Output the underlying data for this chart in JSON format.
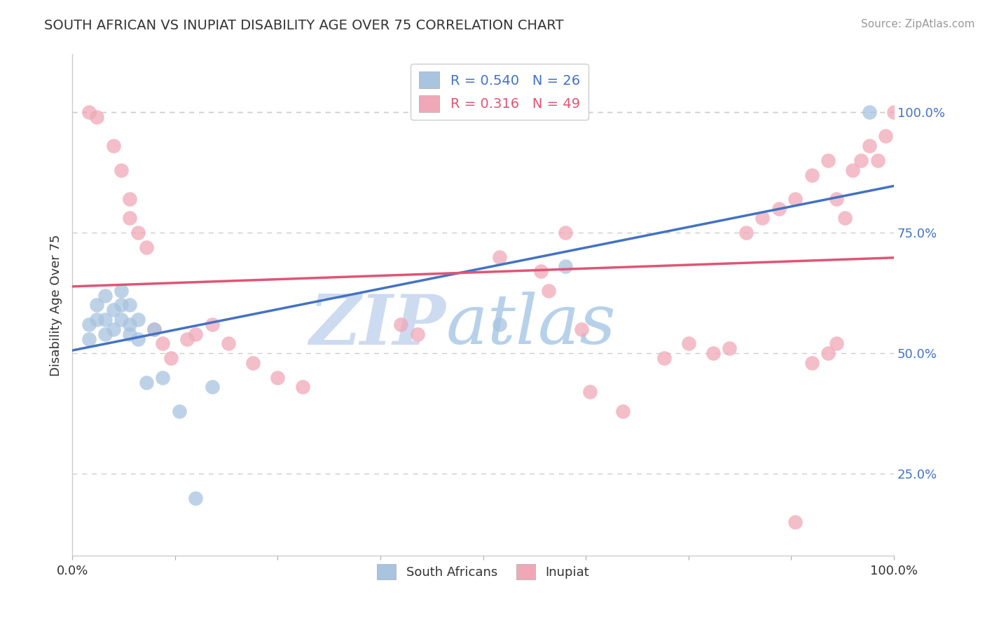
{
  "title": "SOUTH AFRICAN VS INUPIAT DISABILITY AGE OVER 75 CORRELATION CHART",
  "source": "Source: ZipAtlas.com",
  "ylabel": "Disability Age Over 75",
  "xlim": [
    0,
    1
  ],
  "ylim": [
    0.08,
    1.12
  ],
  "xticks": [
    0.0,
    0.125,
    0.25,
    0.375,
    0.5,
    0.625,
    0.75,
    0.875,
    1.0
  ],
  "xtick_labels": [
    "0.0%",
    "",
    "",
    "",
    "",
    "",
    "",
    "",
    "100.0%"
  ],
  "ytick_labels_right": [
    "25.0%",
    "50.0%",
    "75.0%",
    "100.0%"
  ],
  "ytick_positions_right": [
    0.25,
    0.5,
    0.75,
    1.0
  ],
  "blue_R": 0.54,
  "blue_N": 26,
  "pink_R": 0.316,
  "pink_N": 49,
  "blue_color": "#a8c4e0",
  "pink_color": "#f0a8b8",
  "blue_line_color": "#4472c4",
  "pink_line_color": "#e05575",
  "blue_label": "South Africans",
  "pink_label": "Inupiat",
  "watermark_zip": "ZIP",
  "watermark_atlas": "atlas",
  "watermark_color_zip": "#c8d8f0",
  "watermark_color_atlas": "#b0cce8",
  "grid_color": "#cccccc",
  "background_color": "#ffffff",
  "blue_x": [
    0.02,
    0.02,
    0.03,
    0.03,
    0.04,
    0.04,
    0.04,
    0.05,
    0.05,
    0.06,
    0.06,
    0.06,
    0.07,
    0.07,
    0.07,
    0.08,
    0.08,
    0.09,
    0.1,
    0.11,
    0.13,
    0.15,
    0.17,
    0.52,
    0.6,
    0.97
  ],
  "blue_y": [
    0.53,
    0.56,
    0.6,
    0.57,
    0.54,
    0.57,
    0.62,
    0.55,
    0.59,
    0.57,
    0.6,
    0.63,
    0.54,
    0.56,
    0.6,
    0.53,
    0.57,
    0.44,
    0.55,
    0.45,
    0.38,
    0.2,
    0.43,
    0.56,
    0.68,
    1.0
  ],
  "pink_x": [
    0.02,
    0.03,
    0.05,
    0.06,
    0.07,
    0.07,
    0.08,
    0.09,
    0.1,
    0.11,
    0.12,
    0.14,
    0.15,
    0.17,
    0.19,
    0.22,
    0.25,
    0.28,
    0.4,
    0.42,
    0.52,
    0.57,
    0.6,
    0.62,
    0.72,
    0.75,
    0.78,
    0.8,
    0.82,
    0.84,
    0.86,
    0.88,
    0.9,
    0.92,
    0.93,
    0.94,
    0.95,
    0.96,
    0.97,
    0.98,
    0.99,
    1.0,
    0.58,
    0.63,
    0.67,
    0.88,
    0.9,
    0.92,
    0.93
  ],
  "pink_y": [
    1.0,
    0.99,
    0.93,
    0.88,
    0.82,
    0.78,
    0.75,
    0.72,
    0.55,
    0.52,
    0.49,
    0.53,
    0.54,
    0.56,
    0.52,
    0.48,
    0.45,
    0.43,
    0.56,
    0.54,
    0.7,
    0.67,
    0.75,
    0.55,
    0.49,
    0.52,
    0.5,
    0.51,
    0.75,
    0.78,
    0.8,
    0.82,
    0.87,
    0.9,
    0.82,
    0.78,
    0.88,
    0.9,
    0.93,
    0.9,
    0.95,
    1.0,
    0.63,
    0.42,
    0.38,
    0.15,
    0.48,
    0.5,
    0.52
  ]
}
